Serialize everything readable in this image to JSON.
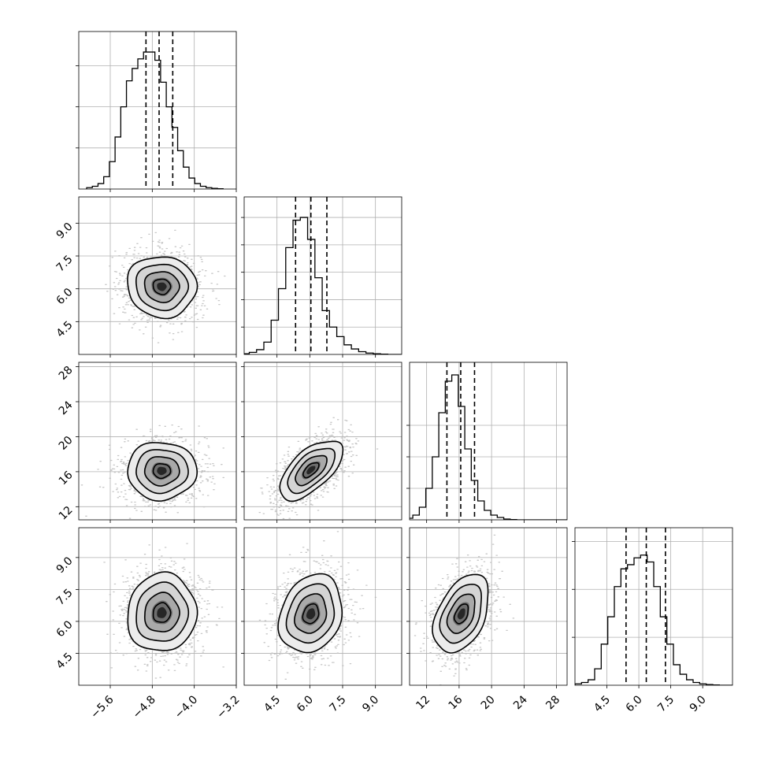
{
  "chart_data": {
    "type": "corner",
    "grid": true,
    "parameters": [
      {
        "hist": {
          "range": [
            -6.05,
            -3.45
          ],
          "bins": 24,
          "counts": [
            1,
            2,
            4,
            9,
            20,
            38,
            60,
            79,
            88,
            95,
            100,
            100,
            94,
            78,
            60,
            45,
            28,
            16,
            8,
            4,
            2,
            1,
            0.5,
            0.2
          ],
          "ylim": [
            0,
            115
          ],
          "ytick_values": [
            30,
            60,
            90
          ],
          "quantiles": [
            -4.92,
            -4.67,
            -4.41
          ]
        }
      },
      {
        "hist": {
          "range": [
            2.9,
            10.9
          ],
          "bins": 24,
          "counts": [
            0.5,
            1.5,
            3.5,
            9,
            25,
            48,
            78,
            98,
            100,
            84,
            56,
            32,
            20,
            13,
            7,
            4,
            2,
            1,
            0.5,
            0.2,
            0,
            0,
            0,
            0
          ],
          "ylim": [
            0,
            115
          ],
          "ytick_values": [
            20,
            40,
            60,
            80,
            100
          ],
          "quantiles": [
            5.35,
            6.05,
            6.78
          ],
          "xlim": [
            3.0,
            10.2
          ],
          "xticks": [
            "4.5",
            "6.0",
            "7.5",
            "9.0"
          ],
          "xtick_values": [
            4.5,
            6.0,
            7.5,
            9.0
          ]
        }
      },
      {
        "hist": {
          "range": [
            9.5,
            29.5
          ],
          "bins": 25,
          "counts": [
            1,
            3,
            8,
            20,
            40,
            68,
            88,
            92,
            72,
            45,
            25,
            12,
            6,
            3,
            1.5,
            0.5,
            0.2,
            0,
            0,
            0,
            0,
            0,
            0,
            0,
            0
          ],
          "ylim": [
            0,
            100
          ],
          "ytick_values": [
            20,
            40,
            60
          ],
          "quantiles": [
            14.5,
            16.2,
            17.9
          ],
          "xlim": [
            9.9,
            29.3
          ],
          "xticks": [
            "12",
            "16",
            "20",
            "24",
            "28"
          ],
          "xtick_values": [
            12,
            16,
            20,
            24,
            28
          ]
        }
      },
      {
        "hist": {
          "range": [
            3.0,
            10.4
          ],
          "bins": 24,
          "counts": [
            1,
            2,
            4,
            12,
            30,
            50,
            72,
            85,
            88,
            93,
            95,
            90,
            72,
            50,
            30,
            15,
            8,
            4,
            2,
            1,
            0.5,
            0.2,
            0,
            0
          ],
          "ylim": [
            0,
            115
          ],
          "ytick_values": [
            35,
            70,
            105
          ],
          "quantiles": [
            5.4,
            6.35,
            7.25
          ],
          "xlim": [
            3.0,
            10.4
          ],
          "xticks": [
            "4.5",
            "6.0",
            "7.5",
            "9.0"
          ],
          "xtick_values": [
            4.5,
            6.0,
            7.5,
            9.0
          ]
        }
      }
    ],
    "row_axes": [
      {
        "ylim": [
          3.0,
          10.2
        ],
        "yticks": [
          "4.5",
          "6.0",
          "7.5",
          "9.0"
        ],
        "ytick_values": [
          4.5,
          6.0,
          7.5,
          9.0
        ]
      },
      {
        "ylim": [
          10.5,
          28.5
        ],
        "yticks": [
          "12",
          "16",
          "20",
          "24",
          "28"
        ],
        "ytick_values": [
          12,
          16,
          20,
          24,
          28
        ]
      },
      {
        "ylim": [
          3.0,
          10.4
        ],
        "yticks": [
          "4.5",
          "6.0",
          "7.5",
          "9.0"
        ],
        "ytick_values": [
          4.5,
          6.0,
          7.5,
          9.0
        ]
      }
    ],
    "col_axes": [
      {
        "xlim": [
          -6.2,
          -3.2
        ],
        "xticks": [
          "−5.6",
          "−4.8",
          "−4.0",
          "−3.2"
        ],
        "xtick_values": [
          -5.6,
          -4.8,
          -4.0,
          -3.2
        ]
      },
      {
        "xlim": [
          3.0,
          10.2
        ],
        "xticks": [
          "4.5",
          "6.0",
          "7.5",
          "9.0"
        ],
        "xtick_values": [
          4.5,
          6.0,
          7.5,
          9.0
        ]
      },
      {
        "xlim": [
          9.9,
          29.3
        ],
        "xticks": [
          "12",
          "16",
          "20",
          "24",
          "28"
        ],
        "xtick_values": [
          12,
          16,
          20,
          24,
          28
        ]
      }
    ],
    "panels": [
      {
        "row": 1,
        "col": 0,
        "center": [
          -4.62,
          6.1
        ],
        "sigma": [
          0.33,
          0.7
        ],
        "corr": -0.05
      },
      {
        "row": 2,
        "col": 0,
        "center": [
          -4.62,
          16.1
        ],
        "sigma": [
          0.33,
          1.65
        ],
        "corr": 0.0
      },
      {
        "row": 2,
        "col": 1,
        "center": [
          6.05,
          16.2
        ],
        "sigma": [
          0.72,
          1.7
        ],
        "corr": 0.62
      },
      {
        "row": 3,
        "col": 0,
        "center": [
          -4.62,
          6.4
        ],
        "sigma": [
          0.33,
          0.92
        ],
        "corr": 0.05
      },
      {
        "row": 3,
        "col": 1,
        "center": [
          6.05,
          6.35
        ],
        "sigma": [
          0.72,
          0.92
        ],
        "corr": 0.2
      },
      {
        "row": 3,
        "col": 2,
        "center": [
          16.3,
          6.35
        ],
        "sigma": [
          1.7,
          0.92
        ],
        "corr": 0.42
      }
    ]
  }
}
